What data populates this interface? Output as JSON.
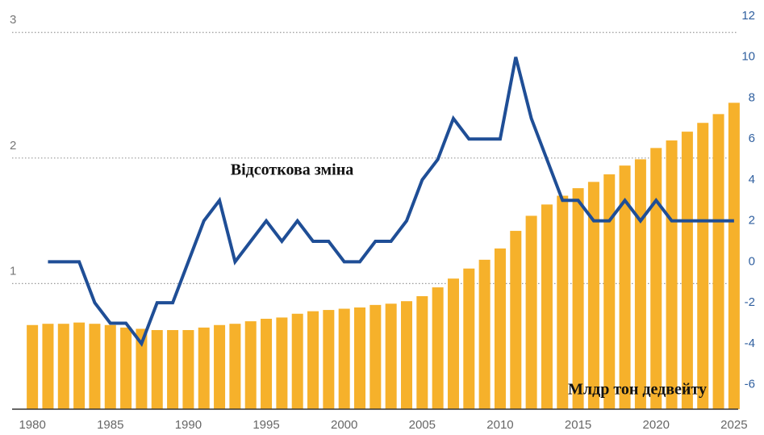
{
  "chart_data": {
    "type": "bar-line",
    "annotations": [
      "Відсоткова зміна",
      "Млдр тон дедвейту"
    ],
    "xlim": [
      1978.7,
      2026.3
    ],
    "xticks": [
      1980,
      1985,
      1990,
      1995,
      2000,
      2005,
      2010,
      2015,
      2020,
      2025
    ],
    "ylim": [
      0,
      3.13
    ],
    "yticks": [
      1,
      2,
      3
    ],
    "y2lim": [
      -7.2,
      12
    ],
    "y2ticks": [
      -6,
      -4,
      -2,
      0,
      2,
      4,
      6,
      8,
      10,
      12
    ],
    "grid": true,
    "series": [
      {
        "kind": "bar",
        "color": "#f6b12b",
        "x": [
          1980,
          1981,
          1982,
          1983,
          1984,
          1985,
          1986,
          1987,
          1988,
          1989,
          1990,
          1991,
          1992,
          1993,
          1994,
          1995,
          1996,
          1997,
          1998,
          1999,
          2000,
          2001,
          2002,
          2003,
          2004,
          2005,
          2006,
          2007,
          2008,
          2009,
          2010,
          2011,
          2012,
          2013,
          2014,
          2015,
          2016,
          2017,
          2018,
          2019,
          2020,
          2021,
          2022,
          2023,
          2024,
          2025
        ],
        "values": [
          0.67,
          0.68,
          0.68,
          0.69,
          0.68,
          0.67,
          0.65,
          0.64,
          0.63,
          0.63,
          0.63,
          0.65,
          0.67,
          0.68,
          0.7,
          0.72,
          0.73,
          0.76,
          0.78,
          0.79,
          0.8,
          0.81,
          0.83,
          0.84,
          0.86,
          0.9,
          0.97,
          1.04,
          1.12,
          1.19,
          1.28,
          1.42,
          1.54,
          1.63,
          1.7,
          1.76,
          1.81,
          1.87,
          1.94,
          1.99,
          2.08,
          2.14,
          2.21,
          2.28,
          2.35,
          2.44
        ]
      },
      {
        "kind": "line",
        "axis": "y2",
        "color": "#1f4e96",
        "x": [
          1981,
          1982,
          1983,
          1984,
          1985,
          1986,
          1987,
          1988,
          1989,
          1990,
          1991,
          1992,
          1993,
          1994,
          1995,
          1996,
          1997,
          1998,
          1999,
          2000,
          2001,
          2002,
          2003,
          2004,
          2005,
          2006,
          2007,
          2008,
          2009,
          2010,
          2011,
          2012,
          2013,
          2014,
          2015,
          2016,
          2017,
          2018,
          2019,
          2020,
          2021,
          2022,
          2023,
          2024,
          2025
        ],
        "values": [
          0,
          0,
          0,
          -2,
          -3,
          -3,
          -4,
          -2,
          -2,
          0,
          2,
          3,
          0,
          1,
          2,
          1,
          2,
          1,
          1,
          0,
          0,
          1,
          1,
          2,
          4,
          5,
          7,
          6,
          6,
          6,
          10,
          7,
          5,
          3,
          3,
          2,
          2,
          3,
          2,
          3,
          2,
          2,
          2,
          2,
          2
        ]
      }
    ]
  }
}
